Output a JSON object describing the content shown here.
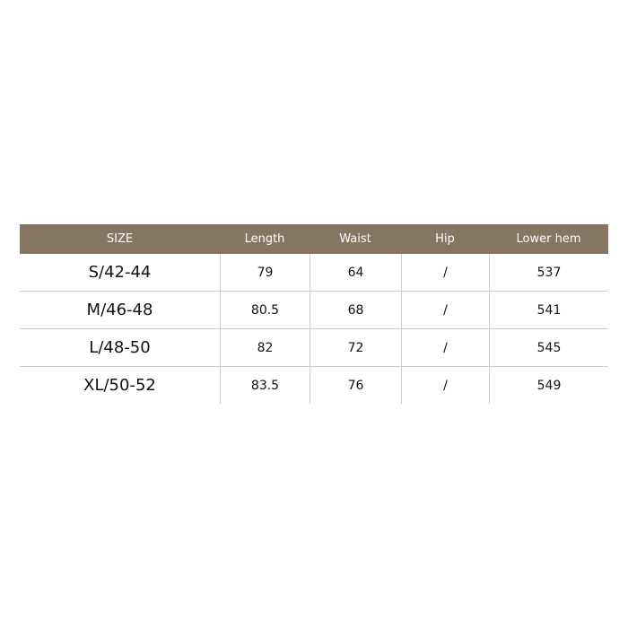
{
  "table": {
    "header_color": "#857661",
    "headers": [
      "SIZE",
      "Length",
      "Waist",
      "Hip",
      "Lower hem"
    ],
    "rows": [
      [
        "S/42-44",
        "79",
        "64",
        "/",
        "537"
      ],
      [
        "M/46-48",
        "80.5",
        "68",
        "/",
        "541"
      ],
      [
        "L/48-50",
        "82",
        "72",
        "/",
        "545"
      ],
      [
        "XL/50-52",
        "83.5",
        "76",
        "/",
        "549"
      ]
    ]
  }
}
